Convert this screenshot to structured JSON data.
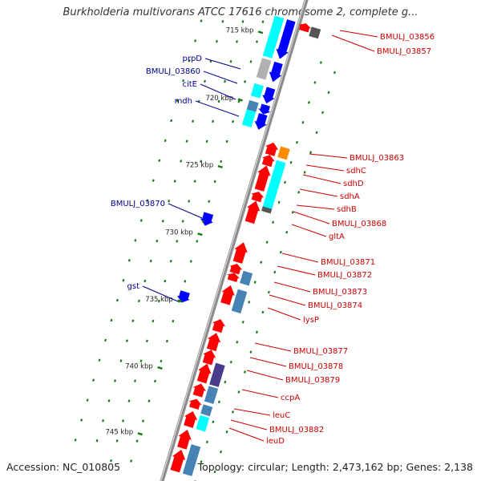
{
  "title": "Burkholderia multivorans ATCC 17616 chromosome 2, complete g...",
  "accession": "Accession: NC_010805",
  "topology": "Topology: circular; Length: 2,473,162 bp; Genes: 2,138",
  "colors": {
    "backbone": "#8c8c8c",
    "forward_label": "#00008b",
    "reverse_label": "#cc0000",
    "tick": "#1a7a1a",
    "red": "#ff0000",
    "blue": "#0000ff",
    "cyan": "#00ffff",
    "steel": "#4682b4",
    "orange": "#ff8c00",
    "gray": "#b0b0b0",
    "darkgray": "#555555",
    "purple": "#483d8b"
  },
  "scale_labels": [
    "715 kbp",
    "720 kbp",
    "725 kbp",
    "730 kbp",
    "735 kbp",
    "740 kbp",
    "745 kbp"
  ],
  "forward_labels": [
    "prpD",
    "BMULJ_03860",
    "citE",
    "mdh",
    "BMULJ_03870",
    "gst"
  ],
  "reverse_labels": [
    "BMULJ_03856",
    "BMULJ_03857",
    "BMULJ_03863",
    "sdhC",
    "sdhD",
    "sdhA",
    "sdhB",
    "BMULJ_03868",
    "gltA",
    "BMULJ_03871",
    "BMULJ_03872",
    "BMULJ_03873",
    "BMULJ_03874",
    "lysP",
    "BMULJ_03877",
    "BMULJ_03878",
    "BMULJ_03879",
    "ccpA",
    "leuC",
    "BMULJ_03882",
    "leuD"
  ]
}
